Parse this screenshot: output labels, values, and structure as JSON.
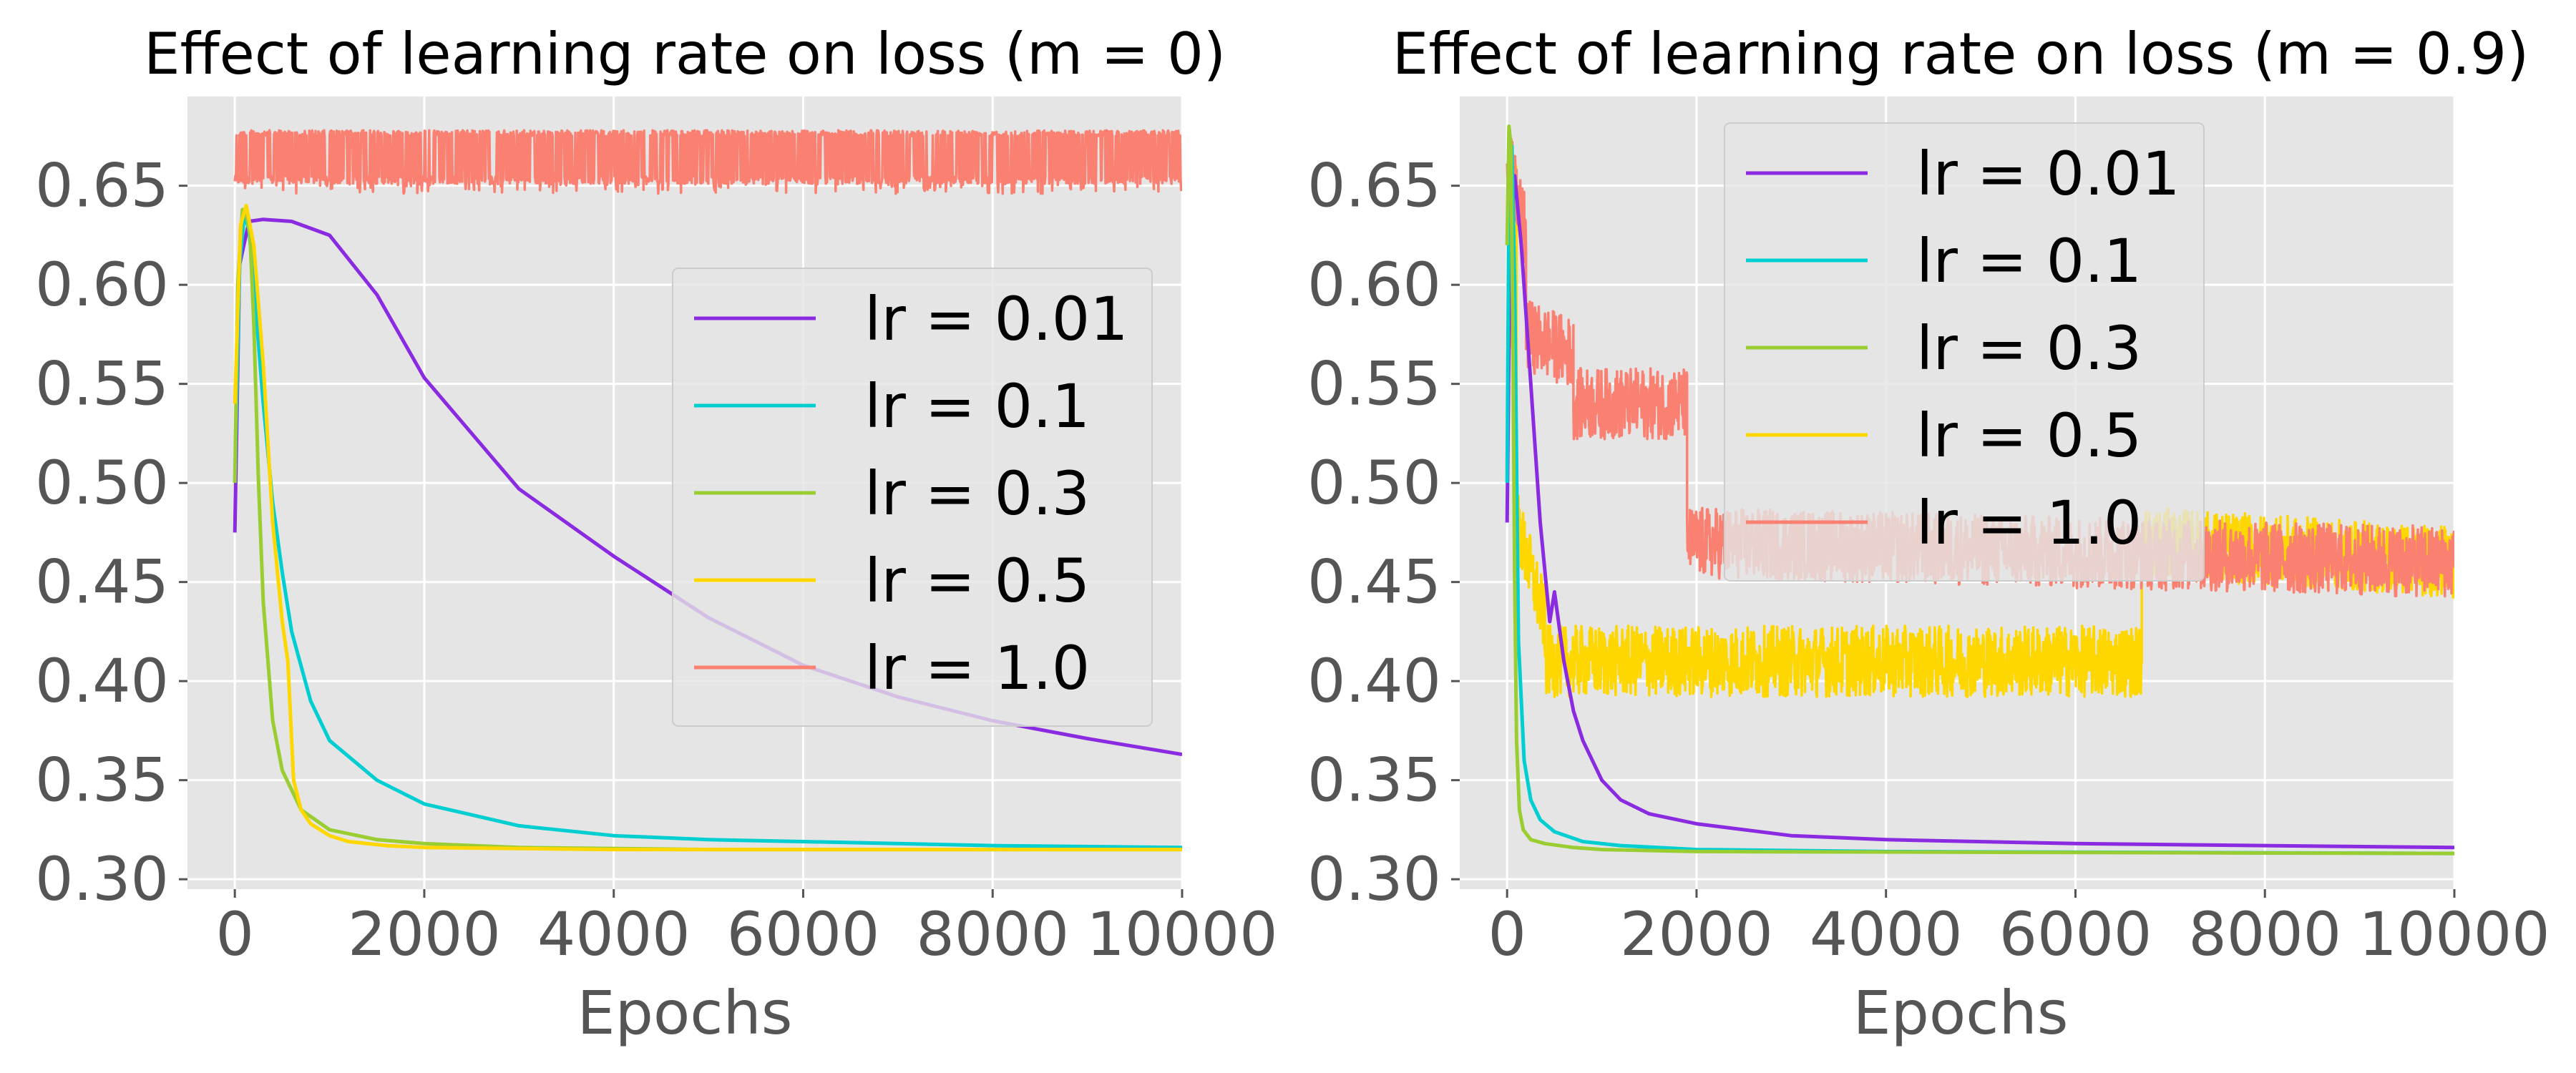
{
  "chart_data": [
    {
      "type": "line",
      "title": "Effect of learning rate on loss (m = 0)",
      "xlabel": "Epochs",
      "ylabel": "",
      "xlim": [
        -500,
        10000
      ],
      "ylim": [
        0.295,
        0.695
      ],
      "xticks": [
        0,
        2000,
        4000,
        6000,
        8000,
        10000
      ],
      "xtick_labels": [
        "0",
        "2000",
        "4000",
        "6000",
        "8000",
        "10000"
      ],
      "yticks": [
        0.3,
        0.35,
        0.4,
        0.45,
        0.5,
        0.55,
        0.6,
        0.65
      ],
      "ytick_labels": [
        "0.30",
        "0.35",
        "0.40",
        "0.45",
        "0.50",
        "0.55",
        "0.60",
        "0.65"
      ],
      "grid": true,
      "legend_position": "center-right",
      "series": [
        {
          "name": "lr = 0.01",
          "color": "#8a2be2",
          "kind": "smooth",
          "x": [
            0,
            50,
            150,
            300,
            600,
            1000,
            1500,
            2000,
            3000,
            4000,
            5000,
            6000,
            7000,
            8000,
            9000,
            10000
          ],
          "y": [
            0.475,
            0.61,
            0.632,
            0.633,
            0.632,
            0.625,
            0.595,
            0.553,
            0.497,
            0.463,
            0.432,
            0.408,
            0.392,
            0.38,
            0.371,
            0.363
          ]
        },
        {
          "name": "lr = 0.1",
          "color": "#00ced1",
          "kind": "smooth",
          "x": [
            0,
            20,
            50,
            100,
            150,
            200,
            300,
            400,
            500,
            600,
            800,
            1000,
            1500,
            2000,
            3000,
            4000,
            5000,
            6000,
            8000,
            10000
          ],
          "y": [
            0.5,
            0.545,
            0.61,
            0.635,
            0.628,
            0.6,
            0.54,
            0.49,
            0.455,
            0.425,
            0.39,
            0.37,
            0.35,
            0.338,
            0.327,
            0.322,
            0.32,
            0.319,
            0.317,
            0.316
          ]
        },
        {
          "name": "lr = 0.3",
          "color": "#9acd32",
          "kind": "smooth",
          "x": [
            0,
            30,
            80,
            120,
            160,
            200,
            250,
            300,
            400,
            500,
            700,
            1000,
            1500,
            2000,
            3000,
            5000,
            10000
          ],
          "y": [
            0.5,
            0.6,
            0.638,
            0.636,
            0.625,
            0.58,
            0.5,
            0.44,
            0.38,
            0.355,
            0.335,
            0.325,
            0.32,
            0.318,
            0.316,
            0.315,
            0.315
          ]
        },
        {
          "name": "lr = 0.5",
          "color": "#ffd700",
          "kind": "smooth",
          "x": [
            0,
            60,
            120,
            200,
            300,
            400,
            500,
            560,
            620,
            700,
            800,
            1000,
            1200,
            1600,
            2000,
            4000,
            10000
          ],
          "y": [
            0.54,
            0.63,
            0.64,
            0.62,
            0.56,
            0.48,
            0.43,
            0.41,
            0.35,
            0.335,
            0.328,
            0.322,
            0.319,
            0.317,
            0.316,
            0.315,
            0.315
          ]
        },
        {
          "name": "lr = 1.0",
          "color": "#fa8072",
          "kind": "noisy",
          "x_start": 0,
          "x_end": 10000,
          "y_upper": 0.678,
          "y_lower_typical": 0.651,
          "y_lower_min": 0.646
        }
      ]
    },
    {
      "type": "line",
      "title": "Effect of learning rate on loss (m = 0.9)",
      "xlabel": "Epochs",
      "ylabel": "",
      "xlim": [
        -500,
        10000
      ],
      "ylim": [
        0.295,
        0.695
      ],
      "xticks": [
        0,
        2000,
        4000,
        6000,
        8000,
        10000
      ],
      "xtick_labels": [
        "0",
        "2000",
        "4000",
        "6000",
        "8000",
        "10000"
      ],
      "yticks": [
        0.3,
        0.35,
        0.4,
        0.45,
        0.5,
        0.55,
        0.6,
        0.65
      ],
      "ytick_labels": [
        "0.30",
        "0.35",
        "0.40",
        "0.45",
        "0.50",
        "0.55",
        "0.60",
        "0.65"
      ],
      "grid": true,
      "legend_position": "top-center",
      "series": [
        {
          "name": "lr = 0.01",
          "color": "#8a2be2",
          "kind": "smooth",
          "x": [
            0,
            30,
            80,
            150,
            250,
            350,
            450,
            500,
            600,
            700,
            800,
            1000,
            1200,
            1500,
            2000,
            3000,
            4000,
            6000,
            8000,
            10000
          ],
          "y": [
            0.48,
            0.62,
            0.655,
            0.62,
            0.55,
            0.48,
            0.43,
            0.445,
            0.41,
            0.385,
            0.37,
            0.35,
            0.34,
            0.333,
            0.328,
            0.322,
            0.32,
            0.318,
            0.317,
            0.316
          ]
        },
        {
          "name": "lr = 0.1",
          "color": "#00ced1",
          "kind": "smooth",
          "x": [
            0,
            20,
            50,
            80,
            120,
            180,
            250,
            350,
            500,
            800,
            1200,
            2000,
            4000,
            10000
          ],
          "y": [
            0.5,
            0.65,
            0.67,
            0.6,
            0.42,
            0.36,
            0.34,
            0.33,
            0.324,
            0.319,
            0.317,
            0.315,
            0.314,
            0.313
          ]
        },
        {
          "name": "lr = 0.3",
          "color": "#9acd32",
          "kind": "smooth",
          "x": [
            0,
            20,
            40,
            60,
            80,
            100,
            130,
            170,
            250,
            400,
            700,
            1000,
            2000,
            10000
          ],
          "y": [
            0.62,
            0.68,
            0.67,
            0.58,
            0.45,
            0.37,
            0.335,
            0.325,
            0.32,
            0.318,
            0.316,
            0.315,
            0.314,
            0.313
          ]
        },
        {
          "name": "lr = 0.5",
          "color": "#ffd700",
          "kind": "noisy-band",
          "segments": [
            {
              "x_start": 0,
              "x_end": 100,
              "y_start": 0.55,
              "y_end": 0.65
            },
            {
              "x_start": 100,
              "x_end": 400,
              "y_start": 0.48,
              "y_end": 0.43
            },
            {
              "x_start": 400,
              "x_end": 6700,
              "y_start": 0.41,
              "y_end": 0.41
            },
            {
              "x_start": 6700,
              "x_end": 10000,
              "y_start": 0.47,
              "y_end": 0.46
            }
          ]
        },
        {
          "name": "lr = 1.0",
          "color": "#fa8072",
          "kind": "noisy-band",
          "segments": [
            {
              "x_start": 0,
              "x_end": 200,
              "y_start": 0.665,
              "y_end": 0.625
            },
            {
              "x_start": 200,
              "x_end": 700,
              "y_start": 0.575,
              "y_end": 0.565
            },
            {
              "x_start": 700,
              "x_end": 1900,
              "y_start": 0.54,
              "y_end": 0.54
            },
            {
              "x_start": 1900,
              "x_end": 10000,
              "y_start": 0.47,
              "y_end": 0.46
            }
          ]
        }
      ]
    }
  ]
}
